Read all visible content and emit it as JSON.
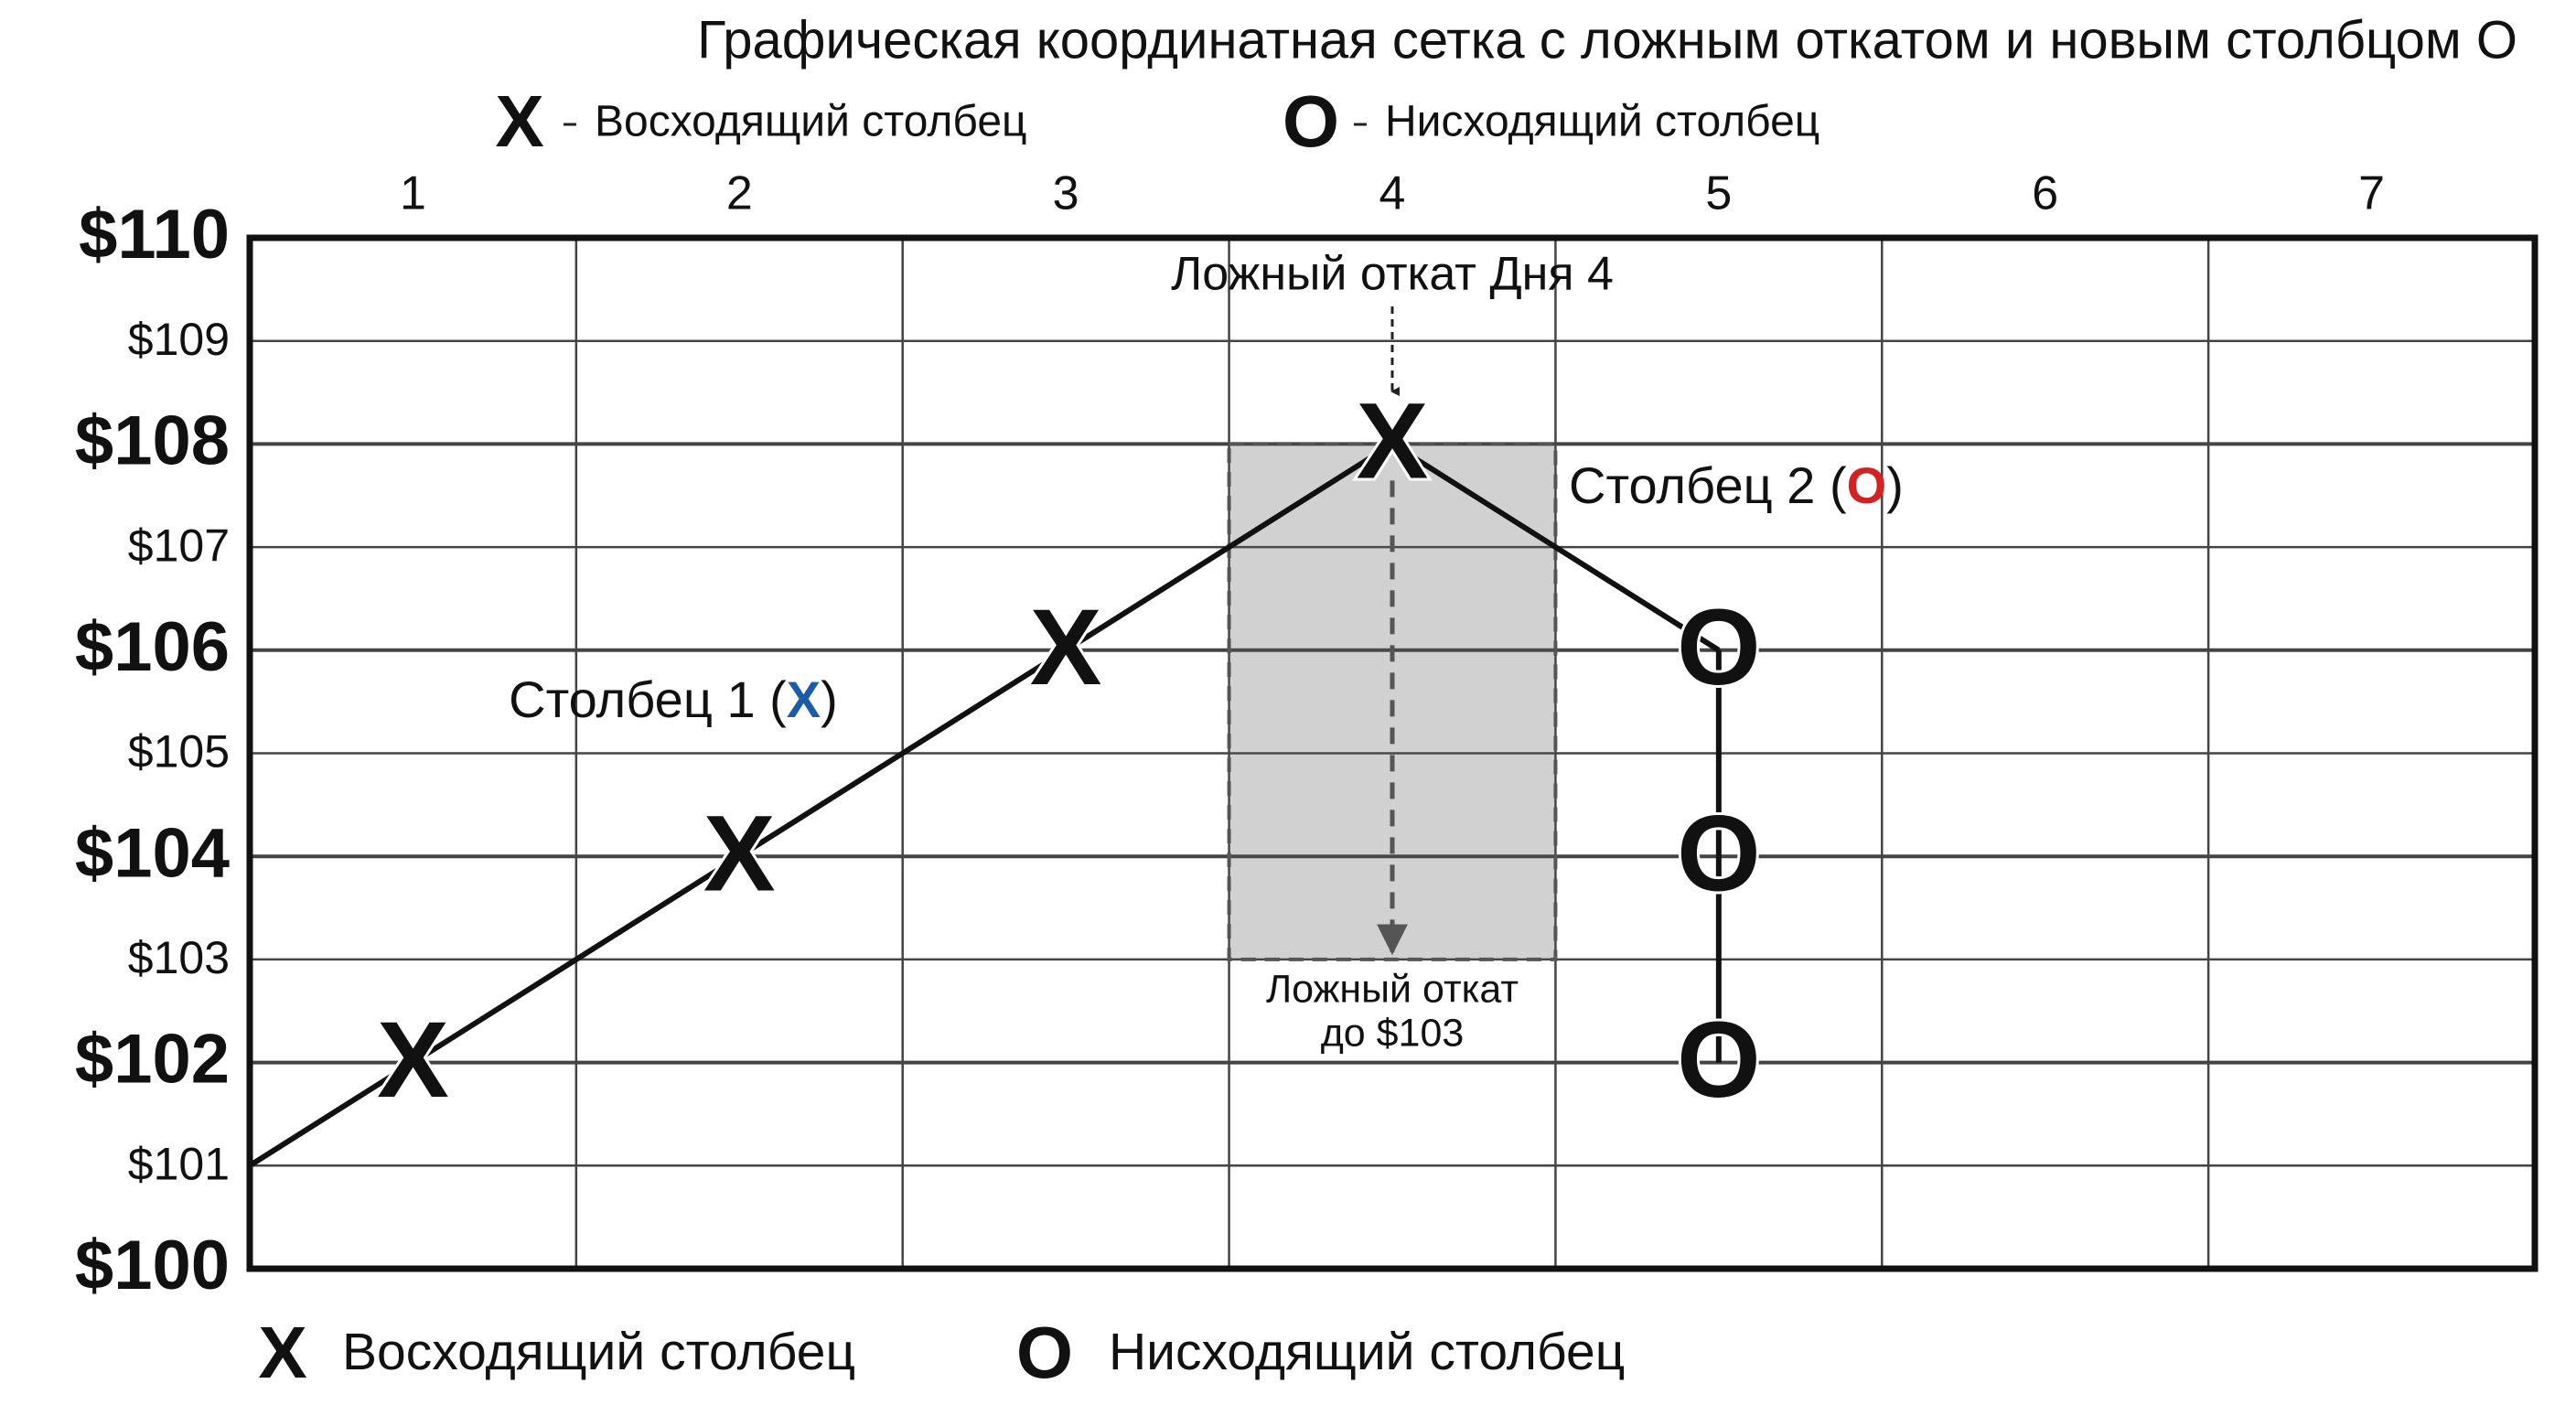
{
  "chart_data": {
    "type": "point-and-figure",
    "title": "Графическая координатная сетка с ложным откатом и новым столбцом O",
    "xlim": [
      0.5,
      7.5
    ],
    "xticks": [
      1,
      2,
      3,
      4,
      5,
      6,
      7
    ],
    "ylim": [
      100,
      110
    ],
    "yticks": [
      {
        "value": 100,
        "label": "$100"
      },
      {
        "value": 101,
        "label": "$101"
      },
      {
        "value": 102,
        "label": "$102"
      },
      {
        "value": 103,
        "label": "$103"
      },
      {
        "value": 104,
        "label": "$104"
      },
      {
        "value": 105,
        "label": "$105"
      },
      {
        "value": 106,
        "label": "$106"
      },
      {
        "value": 107,
        "label": "$107"
      },
      {
        "value": 108,
        "label": "$108"
      },
      {
        "value": 109,
        "label": "$109"
      },
      {
        "value": 110,
        "label": "$110"
      }
    ],
    "grid": true,
    "series": [
      {
        "name": "Восходящий столбец",
        "symbol": "X",
        "color": "#1b5ca6",
        "x": [
          1,
          2,
          3,
          4
        ],
        "values": [
          102,
          104,
          106,
          108
        ]
      },
      {
        "name": "Нисходящий столбец",
        "symbol": "O",
        "color": "#d42222",
        "x": [
          5,
          5,
          5
        ],
        "values": [
          106,
          104,
          102
        ]
      }
    ],
    "trend_line": {
      "x": [
        0.5,
        1,
        2,
        3,
        4,
        5
      ],
      "values": [
        101,
        102,
        104,
        106,
        108,
        106
      ]
    },
    "pullback": {
      "x": 4,
      "from": 108,
      "to": 103,
      "title": "Ложный откат Дня 4",
      "label": [
        "Ложный откат",
        "до $103"
      ]
    },
    "column_labels": [
      {
        "series": 0,
        "prefix": "Столбец 1 (",
        "suffix": ")"
      },
      {
        "series": 1,
        "prefix": "Столбец 2 (",
        "suffix": ")"
      }
    ]
  }
}
